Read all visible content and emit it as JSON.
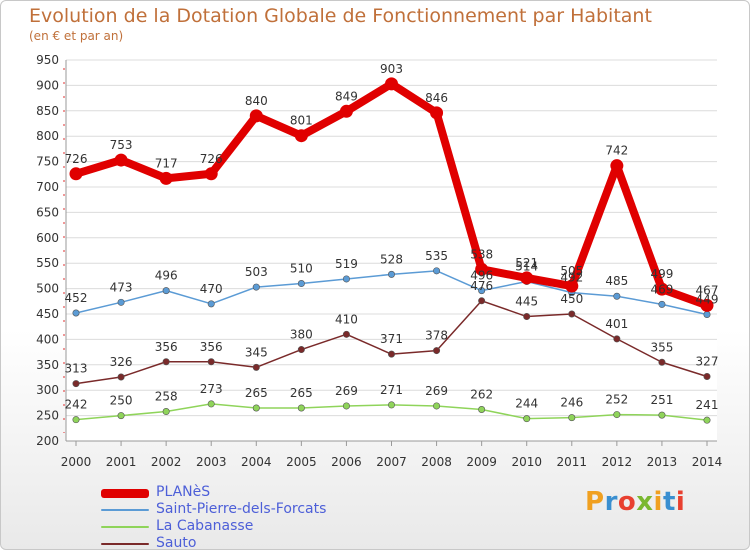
{
  "header": {
    "title": "Evolution de la Dotation Globale de Fonctionnement par Habitant",
    "subtitle": "(en € et par an)"
  },
  "logo": {
    "text": "Proxiti",
    "colors": [
      "#f0a020",
      "#3a8fd0",
      "#e84030",
      "#7ab830"
    ]
  },
  "chart_data": {
    "type": "line",
    "x": [
      "2000",
      "2001",
      "2002",
      "2003",
      "2004",
      "2005",
      "2006",
      "2007",
      "2008",
      "2009",
      "2010",
      "2011",
      "2012",
      "2013",
      "2014"
    ],
    "ylim": [
      200,
      950
    ],
    "yticks": [
      200,
      250,
      300,
      350,
      400,
      450,
      500,
      550,
      600,
      650,
      700,
      750,
      800,
      850,
      900,
      950
    ],
    "grid": true,
    "legend_position": "bottom-left",
    "series": [
      {
        "name": "PLANèS",
        "color": "#e00000",
        "values": [
          726,
          753,
          717,
          726,
          840,
          801,
          849,
          903,
          846,
          538,
          521,
          505,
          742,
          499,
          467
        ]
      },
      {
        "name": "Saint-Pierre-dels-Forcats",
        "color": "#5b9bd5",
        "values": [
          452,
          473,
          496,
          470,
          503,
          510,
          519,
          528,
          535,
          496,
          514,
          492,
          485,
          469,
          449
        ]
      },
      {
        "name": "La Cabanasse",
        "color": "#8fd45a",
        "values": [
          242,
          250,
          258,
          273,
          265,
          265,
          269,
          271,
          269,
          262,
          244,
          246,
          252,
          251,
          241
        ]
      },
      {
        "name": "Sauto",
        "color": "#7a2a2a",
        "values": [
          313,
          326,
          356,
          356,
          345,
          380,
          410,
          371,
          378,
          476,
          445,
          450,
          401,
          355,
          327
        ]
      }
    ]
  }
}
